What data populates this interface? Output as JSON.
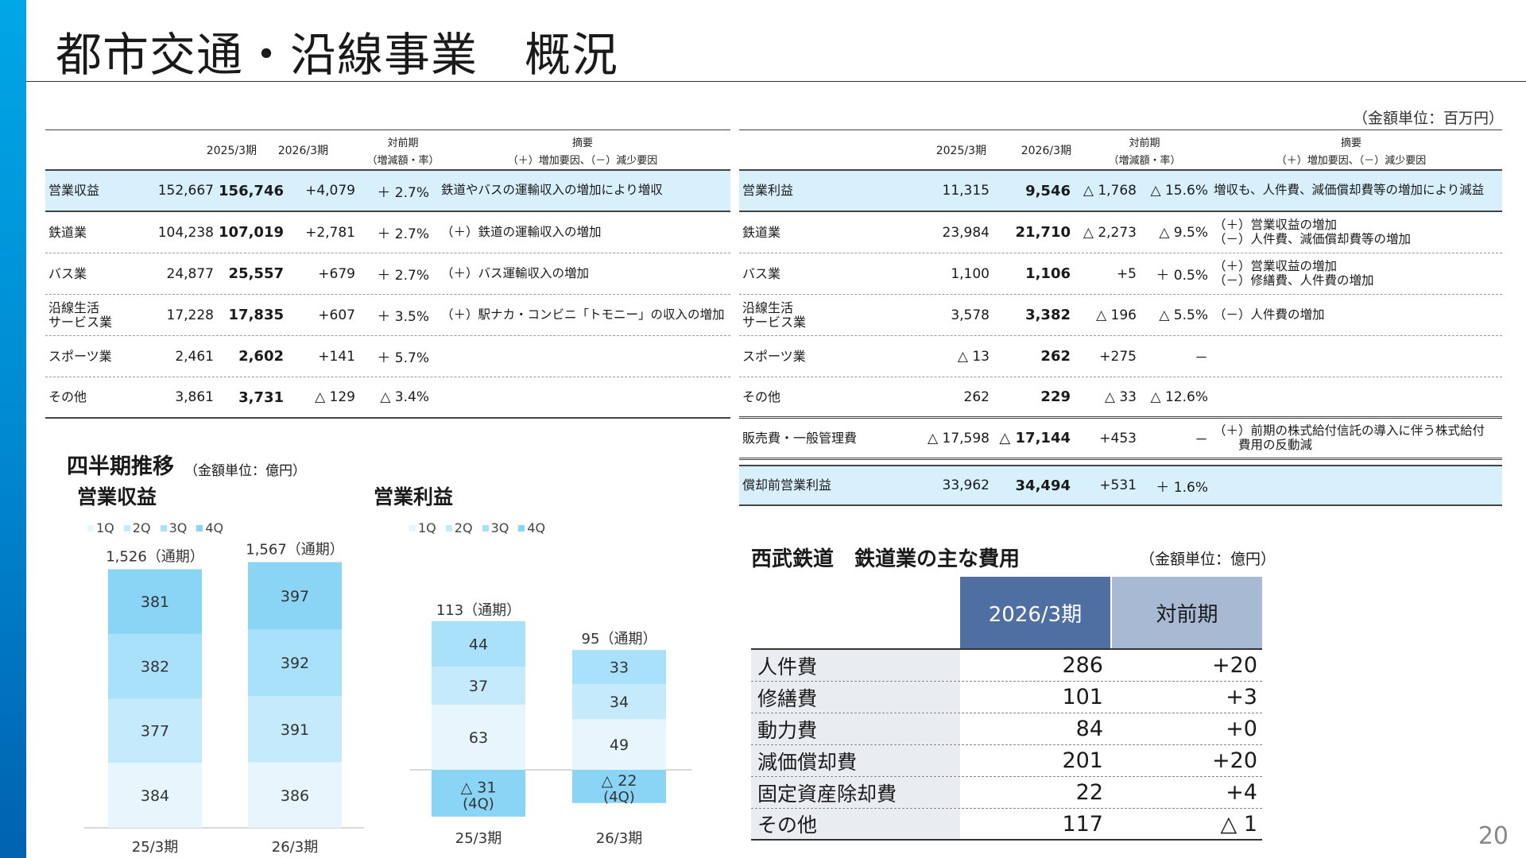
{
  "title": "都市交通・沿線事業　概況",
  "unit_main": "（金額単位：百万円）",
  "headers": {
    "prev": "2025/3期",
    "curr": "2026/3期",
    "yoy_top": "対前期",
    "yoy_bottom": "（増減額・率）",
    "note_top": "摘要",
    "note_bottom": "（＋）増加要因、（－）減少要因"
  },
  "revenue_rows": [
    {
      "label": "営業収益",
      "prev": "152,667",
      "curr": "156,746",
      "diff": "+4,079",
      "rate": "＋ 2.7%",
      "note1": "鉄道やバスの運輸収入の増加により増収",
      "note2": ""
    },
    {
      "label": "鉄道業",
      "prev": "104,238",
      "curr": "107,019",
      "diff": "+2,781",
      "rate": "＋ 2.7%",
      "note1": "（＋）鉄道の運輸収入の増加",
      "note2": ""
    },
    {
      "label": "バス業",
      "prev": "24,877",
      "curr": "25,557",
      "diff": "+679",
      "rate": "＋ 2.7%",
      "note1": "（＋）バス運輸収入の増加",
      "note2": ""
    },
    {
      "label": "沿線生活\nサービス業",
      "prev": "17,228",
      "curr": "17,835",
      "diff": "+607",
      "rate": "＋ 3.5%",
      "note1": "（＋）駅ナカ・コンビニ「トモニー」の収入の増加",
      "note2": ""
    },
    {
      "label": "スポーツ業",
      "prev": "2,461",
      "curr": "2,602",
      "diff": "+141",
      "rate": "＋ 5.7%",
      "note1": "",
      "note2": ""
    },
    {
      "label": "その他",
      "prev": "3,861",
      "curr": "3,731",
      "diff": "△ 129",
      "rate": "△ 3.4%",
      "note1": "",
      "note2": ""
    }
  ],
  "profit_rows": [
    {
      "label": "営業利益",
      "prev": "11,315",
      "curr": "9,546",
      "diff": "△ 1,768",
      "rate": "△ 15.6%",
      "note1": "増収も、人件費、減価償却費等の増加により減益",
      "note2": ""
    },
    {
      "label": "鉄道業",
      "prev": "23,984",
      "curr": "21,710",
      "diff": "△ 2,273",
      "rate": "△ 9.5%",
      "note1": "（＋）営業収益の増加",
      "note2": "（－）人件費、減価償却費等の増加"
    },
    {
      "label": "バス業",
      "prev": "1,100",
      "curr": "1,106",
      "diff": "+5",
      "rate": "＋ 0.5%",
      "note1": "（＋）営業収益の増加",
      "note2": "（－）修繕費、人件費の増加"
    },
    {
      "label": "沿線生活\nサービス業",
      "prev": "3,578",
      "curr": "3,382",
      "diff": "△ 196",
      "rate": "△ 5.5%",
      "note1": "（－）人件費の増加",
      "note2": ""
    },
    {
      "label": "スポーツ業",
      "prev": "△ 13",
      "curr": "262",
      "diff": "+275",
      "rate": "－",
      "note1": "",
      "note2": ""
    },
    {
      "label": "その他",
      "prev": "262",
      "curr": "229",
      "diff": "△ 33",
      "rate": "△ 12.6%",
      "note1": "",
      "note2": ""
    },
    {
      "label": "販売費・一般管理費",
      "prev": "△ 17,598",
      "curr": "△ 17,144",
      "diff": "+453",
      "rate": "－",
      "note1": "（＋）前期の株式給付信託の導入に伴う株式給付",
      "note2": "　　費用の反動減"
    },
    {
      "label": "償却前営業利益",
      "prev": "33,962",
      "curr": "34,494",
      "diff": "+531",
      "rate": "＋ 1.6%",
      "note1": "",
      "note2": ""
    }
  ],
  "quarterly": {
    "title": "四半期推移",
    "unit": "（金額単位：億円）",
    "legend": [
      "1Q",
      "2Q",
      "3Q",
      "4Q"
    ],
    "colors": {
      "q1": "#e7f6fd",
      "q2": "#c4eafb",
      "q3": "#a8e1f9",
      "q4": "#8ad5f6"
    }
  },
  "chart_data": [
    {
      "type": "bar",
      "title": "営業収益",
      "categories": [
        "25/3期",
        "26/3期"
      ],
      "series": [
        {
          "name": "1Q",
          "values": [
            384,
            386
          ]
        },
        {
          "name": "2Q",
          "values": [
            377,
            391
          ]
        },
        {
          "name": "3Q",
          "values": [
            382,
            392
          ]
        },
        {
          "name": "4Q",
          "values": [
            381,
            397
          ]
        }
      ],
      "totals": [
        "1,526（通期）",
        "1,567（通期）"
      ],
      "stacked": true
    },
    {
      "type": "bar",
      "title": "営業利益",
      "categories": [
        "25/3期",
        "26/3期"
      ],
      "series": [
        {
          "name": "1Q",
          "values": [
            63,
            49
          ]
        },
        {
          "name": "2Q",
          "values": [
            37,
            34
          ]
        },
        {
          "name": "3Q",
          "values": [
            44,
            33
          ]
        },
        {
          "name": "4Q",
          "values": [
            -31,
            -22
          ]
        }
      ],
      "value_labels": {
        "1Q": [
          "63",
          "49"
        ],
        "2Q": [
          "37",
          "34"
        ],
        "3Q": [
          "44",
          "33"
        ],
        "4Q": [
          "△ 31",
          "△ 22"
        ]
      },
      "q4_sub": "(4Q)",
      "totals": [
        "113（通期）",
        "95（通期）"
      ],
      "stacked": true
    }
  ],
  "cost_table": {
    "title": "西武鉄道　鉄道業の主な費用",
    "unit": "（金額単位：億円）",
    "col1": "2026/3期",
    "col2": "対前期",
    "rows": [
      {
        "label": "人件費",
        "value": "286",
        "diff": "+20"
      },
      {
        "label": "修繕費",
        "value": "101",
        "diff": "+3"
      },
      {
        "label": "動力費",
        "value": "84",
        "diff": "+0"
      },
      {
        "label": "減価償却費",
        "value": "201",
        "diff": "+20"
      },
      {
        "label": "固定資産除却費",
        "value": "22",
        "diff": "+4"
      },
      {
        "label": "その他",
        "value": "117",
        "diff": "△ 1"
      }
    ]
  },
  "page_number": "20"
}
